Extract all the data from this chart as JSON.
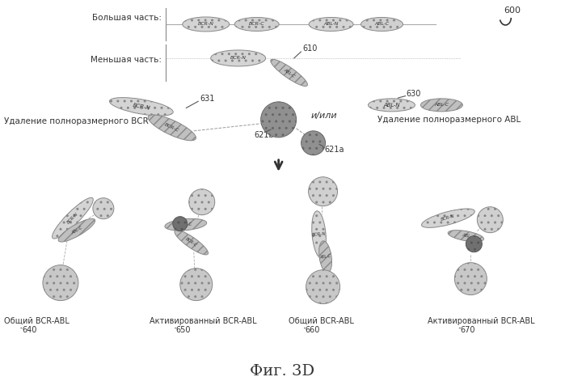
{
  "bg_color": "#ffffff",
  "title": "Фиг. 3D",
  "text_big": "Большая часть:",
  "text_small": "Меньшая часть:",
  "text_del_bcr": "Удаление полноразмерного BCR",
  "text_del_abl": "Удаление полноразмерного ABL",
  "text_iili": "и/или",
  "text_640": "Общий BCR-ABL",
  "text_650": "Активированный BCR-ABL",
  "text_660": "Общий BCR-ABL",
  "text_670": "Активированный BCR-ABL",
  "gray_light": "#c8c8c8",
  "gray_med": "#aaaaaa",
  "gray_dark": "#888888",
  "gray_darker": "#606060",
  "hatch": "///",
  "rect_fill": "#c0c0c0",
  "rect_edge": "#888888"
}
